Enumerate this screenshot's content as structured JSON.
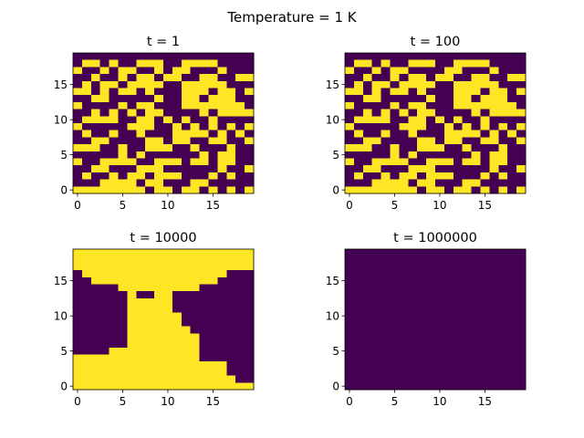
{
  "figure": {
    "suptitle": "Temperature = 1 K"
  },
  "colors": {
    "low": "#440154",
    "high": "#fde725",
    "axis": "#000000",
    "background": "#ffffff"
  },
  "chart_data": [
    {
      "type": "heatmap",
      "title": "t = 1",
      "xlabel": "",
      "ylabel": "",
      "xlim": [
        -0.5,
        19.5
      ],
      "ylim": [
        -0.5,
        19.5
      ],
      "x_ticks": [
        0,
        5,
        10,
        15
      ],
      "y_ticks": [
        0,
        5,
        10,
        15
      ],
      "origin": "lower",
      "grid": false,
      "rows_top_to_bottom": [
        "00000000000000000000",
        "01101001110011110000",
        "10010110010110001000",
        "00100101101100110011",
        "01011011110011111000",
        "11010110100011101101",
        "00110000010011011100",
        "10000101100011111110",
        "00101010110000101111",
        "01111001101010010000",
        "10000011100101010101",
        "01001001000111101010",
        "00110000110110011001",
        "11100100111001000100",
        "00000101000000101100",
        "10011110011101101100",
        "00110001110000001001",
        "01001011011100010100",
        "00011110110001100000",
        "11111111011011010101"
      ]
    },
    {
      "type": "heatmap",
      "title": "t = 100",
      "xlabel": "",
      "ylabel": "",
      "xlim": [
        -0.5,
        19.5
      ],
      "ylim": [
        -0.5,
        19.5
      ],
      "x_ticks": [
        0,
        5,
        10,
        15
      ],
      "y_ticks": [
        0,
        5,
        10,
        15
      ],
      "origin": "lower",
      "grid": false,
      "rows_top_to_bottom": [
        "00000000000000000000",
        "01101001110011110000",
        "10010110000110001000",
        "00100101101100110011",
        "01011011110011111000",
        "11010110100011101101",
        "00110000010011011100",
        "10000101100011111110",
        "00101010110000101111",
        "01111001101010010000",
        "10000011100101010101",
        "01001001000111101010",
        "00110000110110011001",
        "11100100111001000100",
        "00000101000000101100",
        "10011110011101101100",
        "00110001110000001001",
        "01001011011100010100",
        "00011110110001100000",
        "11111111011011010101"
      ]
    },
    {
      "type": "heatmap",
      "title": "t = 10000",
      "xlabel": "",
      "ylabel": "",
      "xlim": [
        -0.5,
        19.5
      ],
      "ylim": [
        -0.5,
        19.5
      ],
      "x_ticks": [
        0,
        5,
        10,
        15
      ],
      "y_ticks": [
        0,
        5,
        10,
        15
      ],
      "origin": "lower",
      "grid": false,
      "rows_top_to_bottom": [
        "11111111111111111111",
        "11111111111111111111",
        "11111111111111111111",
        "01111111111111111000",
        "00111111111111110000",
        "00000111111111000000",
        "00000010011000000000",
        "00000011111000000000",
        "00000011111000000000",
        "00000011111100000000",
        "00000011111100000000",
        "00000011111110000000",
        "00000011111111000000",
        "00000011111111000000",
        "00001111111111000000",
        "11111111111111000000",
        "11111111111111111000",
        "11111111111111111000",
        "11111111111111111100",
        "11111111111111111111"
      ]
    },
    {
      "type": "heatmap",
      "title": "t = 1000000",
      "xlabel": "",
      "ylabel": "",
      "xlim": [
        -0.5,
        19.5
      ],
      "ylim": [
        -0.5,
        19.5
      ],
      "x_ticks": [
        0,
        5,
        10,
        15
      ],
      "y_ticks": [
        0,
        5,
        10,
        15
      ],
      "origin": "lower",
      "grid": false,
      "rows_top_to_bottom": [
        "00000000000000000000",
        "00000000000000000000",
        "00000000000000000000",
        "00000000000000000000",
        "00000000000000000000",
        "00000000000000000000",
        "00000000000000000000",
        "00000000000000000000",
        "00000000000000000000",
        "00000000000000000000",
        "00000000000000000000",
        "00000000000000000000",
        "00000000000000000000",
        "00000000000000000000",
        "00000000000000000000",
        "00000000000000000000",
        "00000000000000000000",
        "00000000000000000000",
        "00000000000000000000",
        "00000000000000000000"
      ]
    }
  ]
}
